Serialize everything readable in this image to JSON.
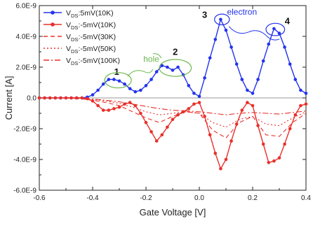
{
  "chart_data": {
    "type": "line",
    "xlabel": "Gate Voltage [V]",
    "ylabel": "Current [A]",
    "xlim": [
      -0.6,
      0.4
    ],
    "ylim": [
      -6e-09,
      6e-09
    ],
    "x_ticks": [
      {
        "value": -0.6,
        "label": "-0.6"
      },
      {
        "value": -0.4,
        "label": "-0.4"
      },
      {
        "value": -0.2,
        "label": "-0.2"
      },
      {
        "value": 0.0,
        "label": "0.0"
      },
      {
        "value": 0.2,
        "label": "0.2"
      },
      {
        "value": 0.4,
        "label": "0.4"
      }
    ],
    "y_ticks": [
      {
        "value": 6e-09,
        "label": "6.0E-9"
      },
      {
        "value": 4e-09,
        "label": "4.0E-9"
      },
      {
        "value": 2e-09,
        "label": "2.0E-9"
      },
      {
        "value": 0,
        "label": "0.0"
      },
      {
        "value": -2e-09,
        "label": "-2.0E-9"
      },
      {
        "value": -4e-09,
        "label": "-4.0E-9"
      },
      {
        "value": -6e-09,
        "label": "-6.0E-9"
      }
    ],
    "legend_position": "top-left",
    "series": [
      {
        "name": "VDS:5mV(10K)",
        "legend": {
          "prefix": "V",
          "sub": "DS",
          "suffix": ":5mV(10K)"
        },
        "color": "#2233ee",
        "style": "solid",
        "marker": "circle",
        "x": [
          -0.6,
          -0.58,
          -0.56,
          -0.54,
          -0.52,
          -0.5,
          -0.48,
          -0.46,
          -0.44,
          -0.42,
          -0.4,
          -0.38,
          -0.36,
          -0.34,
          -0.32,
          -0.3,
          -0.28,
          -0.26,
          -0.24,
          -0.22,
          -0.2,
          -0.18,
          -0.16,
          -0.14,
          -0.12,
          -0.1,
          -0.08,
          -0.06,
          -0.04,
          -0.02,
          0.0,
          0.02,
          0.04,
          0.06,
          0.08,
          0.1,
          0.12,
          0.14,
          0.16,
          0.18,
          0.2,
          0.22,
          0.24,
          0.26,
          0.28,
          0.3,
          0.32,
          0.34,
          0.36,
          0.38,
          0.4
        ],
        "y": [
          0,
          0,
          0,
          0,
          0,
          0,
          0,
          0,
          0,
          5e-11,
          2e-10,
          5e-10,
          9e-10,
          1.2e-09,
          1.2e-09,
          1.1e-09,
          9e-10,
          6e-10,
          4e-10,
          5e-10,
          8e-10,
          1.2e-09,
          1.7e-09,
          2.1e-09,
          2e-09,
          1.8e-09,
          2e-09,
          1.5e-09,
          8e-10,
          3e-10,
          1e-10,
          1.3e-09,
          2.6e-09,
          3.8e-09,
          5.1e-09,
          4.4e-09,
          3.3e-09,
          2.2e-09,
          1.2e-09,
          5e-10,
          3e-10,
          1.2e-09,
          2.4e-09,
          3.5e-09,
          4.5e-09,
          4.2e-09,
          3.3e-09,
          2.2e-09,
          1.2e-09,
          5e-10,
          3e-10
        ]
      },
      {
        "name": "VDS:-5mV(10K)",
        "legend": {
          "prefix": "V",
          "sub": "DS",
          "suffix": ":-5mV(10K)"
        },
        "color": "#e8302a",
        "style": "solid",
        "marker": "circle",
        "x": [
          -0.6,
          -0.58,
          -0.56,
          -0.54,
          -0.52,
          -0.5,
          -0.48,
          -0.46,
          -0.44,
          -0.42,
          -0.4,
          -0.38,
          -0.36,
          -0.34,
          -0.32,
          -0.3,
          -0.28,
          -0.26,
          -0.24,
          -0.22,
          -0.2,
          -0.18,
          -0.16,
          -0.14,
          -0.12,
          -0.1,
          -0.08,
          -0.06,
          -0.04,
          -0.02,
          0.0,
          0.02,
          0.04,
          0.06,
          0.08,
          0.1,
          0.12,
          0.14,
          0.16,
          0.18,
          0.2,
          0.22,
          0.24,
          0.26,
          0.28,
          0.3,
          0.32,
          0.34,
          0.36,
          0.38,
          0.4
        ],
        "y": [
          0,
          0,
          0,
          0,
          0,
          0,
          0,
          0,
          0,
          -5e-11,
          -2e-10,
          -5e-10,
          -8e-10,
          -8e-10,
          -7e-10,
          -6e-10,
          -4e-10,
          -3e-10,
          -5e-10,
          -1e-09,
          -1.6e-09,
          -2.2e-09,
          -2.8e-09,
          -2.4e-09,
          -1.9e-09,
          -1.4e-09,
          -1.1e-09,
          -9e-10,
          -7e-10,
          -4e-10,
          -3e-10,
          -1.2e-09,
          -2.4e-09,
          -3.6e-09,
          -4.6e-09,
          -4e-09,
          -2.8e-09,
          -1.7e-09,
          -8e-10,
          -3e-10,
          -5e-10,
          -1.8e-09,
          -3e-09,
          -4.2e-09,
          -4.1e-09,
          -3.9e-09,
          -3e-09,
          -2e-09,
          -1.1e-09,
          -5e-10,
          -4e-10
        ]
      },
      {
        "name": "VDS:-5mV(30K)",
        "legend": {
          "prefix": "V",
          "sub": "DS",
          "suffix": ":-5mV(30K)"
        },
        "color": "#e8302a",
        "style": "dash",
        "marker": "none",
        "x": [
          -0.6,
          -0.5,
          -0.45,
          -0.4,
          -0.35,
          -0.3,
          -0.25,
          -0.2,
          -0.15,
          -0.1,
          -0.05,
          0.0,
          0.05,
          0.1,
          0.15,
          0.2,
          0.25,
          0.3,
          0.35,
          0.4
        ],
        "y": [
          0,
          0,
          -5e-11,
          -1.5e-10,
          -3e-10,
          -5e-10,
          -9e-10,
          -1.3e-09,
          -1.6e-09,
          -1.2e-09,
          -9e-10,
          -1e-09,
          -2.1e-09,
          -2.6e-09,
          -1.6e-09,
          -1.2e-09,
          -2.4e-09,
          -2.5e-09,
          -1.6e-09,
          -1e-09
        ]
      },
      {
        "name": "VDS:-5mV(50K)",
        "legend": {
          "prefix": "V",
          "sub": "DS",
          "suffix": ":-5mV(50K)"
        },
        "color": "#e8302a",
        "style": "dot",
        "marker": "none",
        "x": [
          -0.6,
          -0.5,
          -0.45,
          -0.4,
          -0.35,
          -0.3,
          -0.25,
          -0.2,
          -0.15,
          -0.1,
          -0.05,
          0.0,
          0.05,
          0.1,
          0.15,
          0.2,
          0.25,
          0.3,
          0.35,
          0.4
        ],
        "y": [
          0,
          0,
          -5e-11,
          -1e-10,
          -2e-10,
          -3.5e-10,
          -6e-10,
          -9e-10,
          -1.1e-09,
          -1e-09,
          -9e-10,
          -1e-09,
          -1.6e-09,
          -1.9e-09,
          -1.4e-09,
          -1.2e-09,
          -1.7e-09,
          -1.8e-09,
          -1.3e-09,
          -9e-10
        ]
      },
      {
        "name": "VDS:-5mV(100K)",
        "legend": {
          "prefix": "V",
          "sub": "DS",
          "suffix": ":-5mV(100K)"
        },
        "color": "#e8302a",
        "style": "dashdot",
        "marker": "none",
        "x": [
          -0.6,
          -0.5,
          -0.45,
          -0.4,
          -0.35,
          -0.3,
          -0.25,
          -0.2,
          -0.15,
          -0.1,
          -0.05,
          0.0,
          0.05,
          0.1,
          0.15,
          0.2,
          0.25,
          0.3,
          0.35,
          0.4
        ],
        "y": [
          0,
          0,
          -3e-11,
          -8e-11,
          -1.5e-10,
          -2.5e-10,
          -4e-10,
          -5.5e-10,
          -7e-10,
          -8e-10,
          -8.5e-10,
          -9e-10,
          -1e-09,
          -1.1e-09,
          -1e-09,
          -9.5e-10,
          -1e-09,
          -1.05e-09,
          -9.5e-10,
          -8.5e-10
        ]
      }
    ],
    "annotations": {
      "labels": [
        {
          "text": "1",
          "x": -0.31,
          "y": 1.5e-09
        },
        {
          "text": "2",
          "x": -0.09,
          "y": 2.8e-09
        },
        {
          "text": "3",
          "x": 0.02,
          "y": 5.2e-09
        },
        {
          "text": "4",
          "x": 0.33,
          "y": 4.8e-09
        }
      ],
      "hole": {
        "text": "hole",
        "x": -0.18,
        "y": 2.35e-09,
        "color": "#6ab84a",
        "ellipses": [
          {
            "x": -0.305,
            "y": 1.15e-09,
            "rx": 0.05,
            "ry": 5e-10
          },
          {
            "x": -0.09,
            "y": 1.95e-09,
            "rx": 0.06,
            "ry": 5.5e-10
          }
        ]
      },
      "electron": {
        "text": "electron",
        "x": 0.16,
        "y": 5.4e-09,
        "color": "#2233ee",
        "ellipses": [
          {
            "x": 0.085,
            "y": 5.1e-09,
            "rx": 0.028,
            "ry": 3.5e-10
          },
          {
            "x": 0.285,
            "y": 4.45e-09,
            "rx": 0.035,
            "ry": 4e-10
          }
        ]
      }
    }
  }
}
